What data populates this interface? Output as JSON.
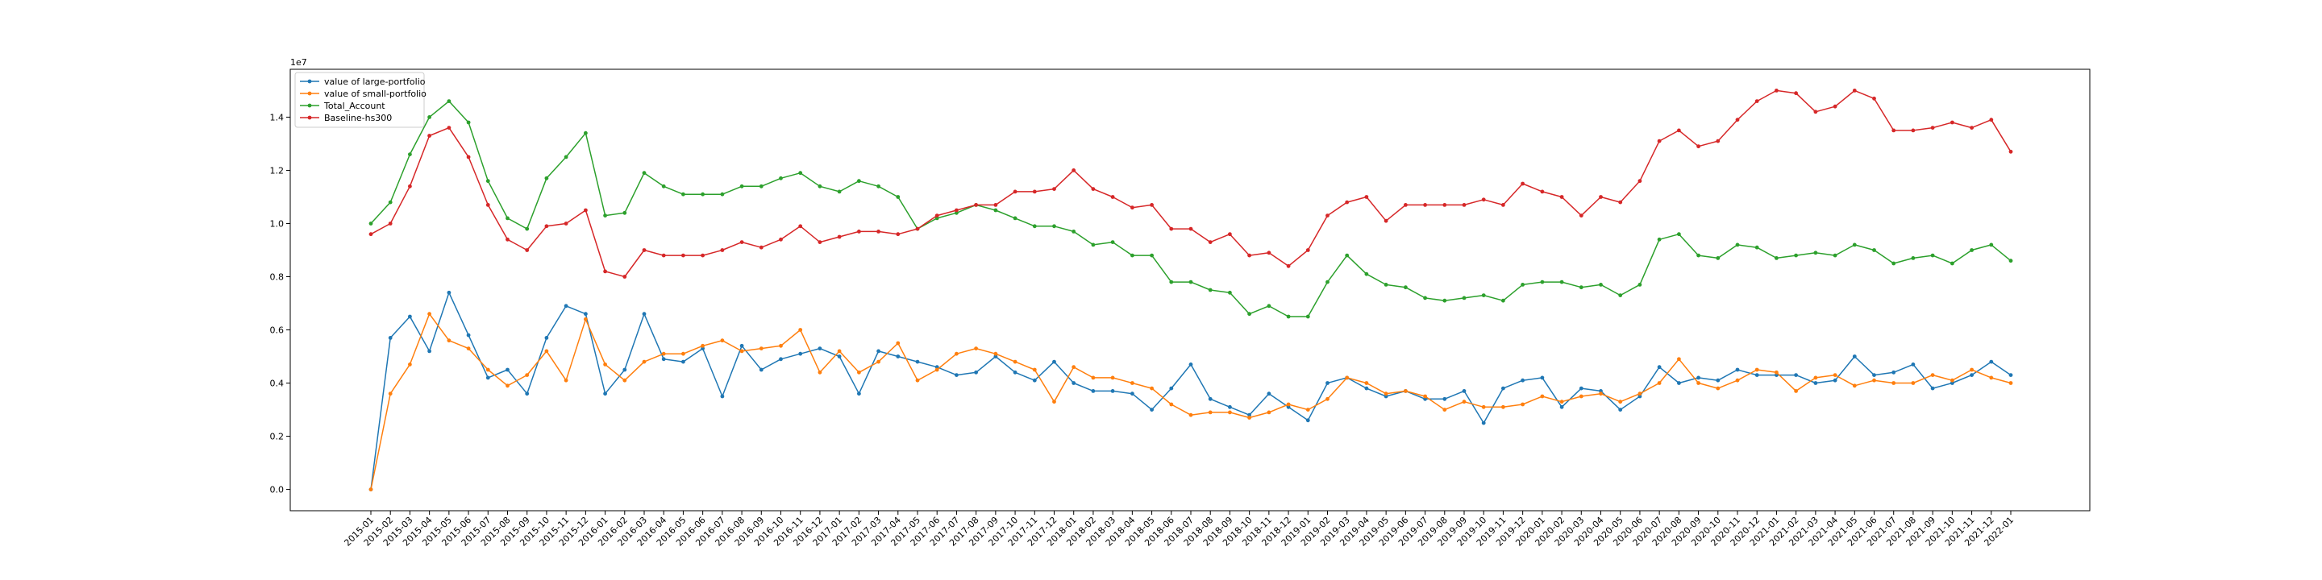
{
  "chart_data": {
    "type": "line",
    "title": "",
    "xlabel": "",
    "ylabel": "",
    "y_offset_text": "1e7",
    "ylim": [
      -0.08,
      1.58
    ],
    "yticks": [
      0.0,
      0.2,
      0.4,
      0.6,
      0.8,
      1.0,
      1.2,
      1.4
    ],
    "ytick_labels": [
      "0.0",
      "0.2",
      "0.4",
      "0.6",
      "0.8",
      "1.0",
      "1.2",
      "1.4"
    ],
    "grid": false,
    "legend_position": "top-left",
    "x": [
      "2015-01",
      "2015-02",
      "2015-03",
      "2015-04",
      "2015-05",
      "2015-06",
      "2015-07",
      "2015-08",
      "2015-09",
      "2015-10",
      "2015-11",
      "2015-12",
      "2016-01",
      "2016-02",
      "2016-03",
      "2016-04",
      "2016-05",
      "2016-06",
      "2016-07",
      "2016-08",
      "2016-09",
      "2016-10",
      "2016-11",
      "2016-12",
      "2017-01",
      "2017-02",
      "2017-03",
      "2017-04",
      "2017-05",
      "2017-06",
      "2017-07",
      "2017-08",
      "2017-09",
      "2017-10",
      "2017-11",
      "2017-12",
      "2018-01",
      "2018-02",
      "2018-03",
      "2018-04",
      "2018-05",
      "2018-06",
      "2018-07",
      "2018-08",
      "2018-09",
      "2018-10",
      "2018-11",
      "2018-12",
      "2019-01",
      "2019-02",
      "2019-03",
      "2019-04",
      "2019-05",
      "2019-06",
      "2019-07",
      "2019-08",
      "2019-09",
      "2019-10",
      "2019-11",
      "2019-12",
      "2020-01",
      "2020-02",
      "2020-03",
      "2020-04",
      "2020-05",
      "2020-06",
      "2020-07",
      "2020-08",
      "2020-09",
      "2020-10",
      "2020-11",
      "2020-12",
      "2021-01",
      "2021-02",
      "2021-03",
      "2021-04",
      "2021-05",
      "2021-06",
      "2021-07",
      "2021-08",
      "2021-09",
      "2021-10",
      "2021-11",
      "2021-12",
      "2022-01"
    ],
    "series": [
      {
        "name": "value of large-portfolio",
        "color": "#1f77b4",
        "values": [
          0.0,
          0.57,
          0.65,
          0.52,
          0.74,
          0.58,
          0.42,
          0.45,
          0.36,
          0.57,
          0.69,
          0.66,
          0.36,
          0.45,
          0.66,
          0.49,
          0.48,
          0.53,
          0.35,
          0.54,
          0.45,
          0.49,
          0.51,
          0.53,
          0.5,
          0.36,
          0.52,
          0.5,
          0.48,
          0.46,
          0.43,
          0.44,
          0.5,
          0.44,
          0.41,
          0.48,
          0.4,
          0.37,
          0.37,
          0.36,
          0.3,
          0.38,
          0.47,
          0.34,
          0.31,
          0.28,
          0.36,
          0.31,
          0.26,
          0.4,
          0.42,
          0.38,
          0.35,
          0.37,
          0.34,
          0.34,
          0.37,
          0.25,
          0.38,
          0.41,
          0.42,
          0.31,
          0.38,
          0.37,
          0.3,
          0.35,
          0.46,
          0.4,
          0.42,
          0.41,
          0.45,
          0.43,
          0.43,
          0.43,
          0.4,
          0.41,
          0.5,
          0.43,
          0.44,
          0.47,
          0.38,
          0.4,
          0.43,
          0.48,
          0.43
        ]
      },
      {
        "name": "value of small-portfolio",
        "color": "#ff7f0e",
        "values": [
          0.0,
          0.36,
          0.47,
          0.66,
          0.56,
          0.53,
          0.45,
          0.39,
          0.43,
          0.52,
          0.41,
          0.64,
          0.47,
          0.41,
          0.48,
          0.51,
          0.51,
          0.54,
          0.56,
          0.52,
          0.53,
          0.54,
          0.6,
          0.44,
          0.52,
          0.44,
          0.48,
          0.55,
          0.41,
          0.45,
          0.51,
          0.53,
          0.51,
          0.48,
          0.45,
          0.33,
          0.46,
          0.42,
          0.42,
          0.4,
          0.38,
          0.32,
          0.28,
          0.29,
          0.29,
          0.27,
          0.29,
          0.32,
          0.3,
          0.34,
          0.42,
          0.4,
          0.36,
          0.37,
          0.35,
          0.3,
          0.33,
          0.31,
          0.31,
          0.32,
          0.35,
          0.33,
          0.35,
          0.36,
          0.33,
          0.36,
          0.4,
          0.49,
          0.4,
          0.38,
          0.41,
          0.45,
          0.44,
          0.37,
          0.42,
          0.43,
          0.39,
          0.41,
          0.4,
          0.4,
          0.43,
          0.41,
          0.45,
          0.42,
          0.4
        ]
      },
      {
        "name": "Total_Account",
        "color": "#2ca02c",
        "values": [
          1.0,
          1.08,
          1.26,
          1.4,
          1.46,
          1.38,
          1.16,
          1.02,
          0.98,
          1.17,
          1.25,
          1.34,
          1.03,
          1.04,
          1.19,
          1.14,
          1.11,
          1.11,
          1.11,
          1.14,
          1.14,
          1.17,
          1.19,
          1.14,
          1.12,
          1.16,
          1.14,
          1.1,
          0.98,
          1.02,
          1.04,
          1.07,
          1.05,
          1.02,
          0.99,
          0.99,
          0.97,
          0.92,
          0.93,
          0.88,
          0.88,
          0.78,
          0.78,
          0.75,
          0.74,
          0.66,
          0.69,
          0.65,
          0.65,
          0.78,
          0.88,
          0.81,
          0.77,
          0.76,
          0.72,
          0.71,
          0.72,
          0.73,
          0.71,
          0.77,
          0.78,
          0.78,
          0.76,
          0.77,
          0.73,
          0.77,
          0.94,
          0.96,
          0.88,
          0.87,
          0.92,
          0.91,
          0.87,
          0.88,
          0.89,
          0.88,
          0.92,
          0.9,
          0.85,
          0.87,
          0.88,
          0.85,
          0.9,
          0.92,
          0.86
        ]
      },
      {
        "name": "Baseline-hs300",
        "color": "#d62728",
        "values": [
          0.96,
          1.0,
          1.14,
          1.33,
          1.36,
          1.25,
          1.07,
          0.94,
          0.9,
          0.99,
          1.0,
          1.05,
          0.82,
          0.8,
          0.9,
          0.88,
          0.88,
          0.88,
          0.9,
          0.93,
          0.91,
          0.94,
          0.99,
          0.93,
          0.95,
          0.97,
          0.97,
          0.96,
          0.98,
          1.03,
          1.05,
          1.07,
          1.07,
          1.12,
          1.12,
          1.13,
          1.2,
          1.13,
          1.1,
          1.06,
          1.07,
          0.98,
          0.98,
          0.93,
          0.96,
          0.88,
          0.89,
          0.84,
          0.9,
          1.03,
          1.08,
          1.1,
          1.01,
          1.07,
          1.07,
          1.07,
          1.07,
          1.09,
          1.07,
          1.15,
          1.12,
          1.1,
          1.03,
          1.1,
          1.08,
          1.16,
          1.31,
          1.35,
          1.29,
          1.31,
          1.39,
          1.46,
          1.5,
          1.49,
          1.42,
          1.44,
          1.5,
          1.47,
          1.35,
          1.35,
          1.36,
          1.38,
          1.36,
          1.39,
          1.27
        ]
      }
    ]
  }
}
